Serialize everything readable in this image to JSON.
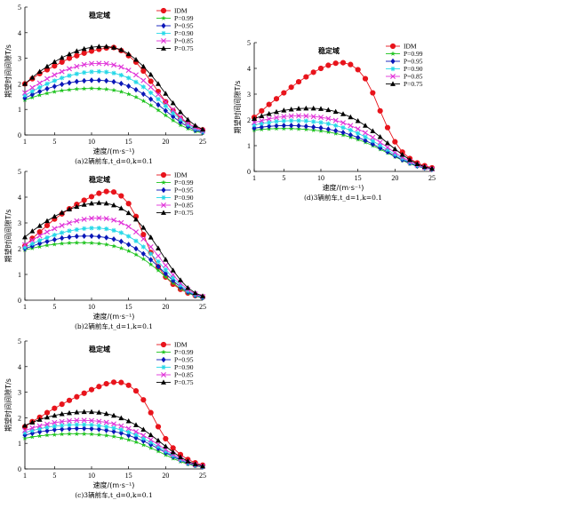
{
  "chart_data": [
    {
      "id": "a",
      "type": "line",
      "title": "",
      "caption": "(a)2辆前车,t_d=0,k=0.1",
      "annotation": "稳定域",
      "xlabel": "速度/(m·s⁻¹)",
      "ylabel": "期望时间间隙T/s",
      "xlim": [
        1,
        25
      ],
      "ylim": [
        0,
        5
      ],
      "xticks": [
        1,
        5,
        10,
        15,
        20,
        25
      ],
      "yticks": [
        0,
        1,
        2,
        3,
        4,
        5
      ],
      "x": [
        1,
        2,
        3,
        4,
        5,
        6,
        7,
        8,
        9,
        10,
        11,
        12,
        13,
        14,
        15,
        16,
        17,
        18,
        19,
        20,
        21,
        22,
        23,
        24,
        25
      ],
      "series": [
        {
          "name": "IDM",
          "color": "#e8141c",
          "marker": "circle",
          "values": [
            2.0,
            2.2,
            2.4,
            2.55,
            2.7,
            2.85,
            3.0,
            3.1,
            3.2,
            3.28,
            3.35,
            3.4,
            3.42,
            3.3,
            3.1,
            2.85,
            2.5,
            2.1,
            1.7,
            1.3,
            0.95,
            0.65,
            0.45,
            0.3,
            0.2
          ]
        },
        {
          "name": "P=0.99",
          "color": "#1ec31e",
          "marker": "star",
          "values": [
            1.37,
            1.47,
            1.56,
            1.63,
            1.69,
            1.74,
            1.77,
            1.8,
            1.81,
            1.82,
            1.81,
            1.79,
            1.75,
            1.69,
            1.6,
            1.48,
            1.33,
            1.16,
            0.97,
            0.77,
            0.57,
            0.39,
            0.25,
            0.14,
            0.08
          ]
        },
        {
          "name": "P=0.95",
          "color": "#0a17b8",
          "marker": "diamond",
          "values": [
            1.45,
            1.58,
            1.7,
            1.81,
            1.9,
            1.98,
            2.04,
            2.09,
            2.12,
            2.14,
            2.14,
            2.12,
            2.08,
            2.01,
            1.91,
            1.77,
            1.6,
            1.4,
            1.18,
            0.95,
            0.72,
            0.5,
            0.33,
            0.19,
            0.11
          ]
        },
        {
          "name": "P=0.90",
          "color": "#26d8e8",
          "marker": "asterisk",
          "values": [
            1.55,
            1.71,
            1.86,
            2.0,
            2.12,
            2.23,
            2.32,
            2.39,
            2.44,
            2.47,
            2.48,
            2.46,
            2.42,
            2.34,
            2.23,
            2.07,
            1.88,
            1.65,
            1.4,
            1.13,
            0.86,
            0.61,
            0.4,
            0.24,
            0.13
          ]
        },
        {
          "name": "P=0.85",
          "color": "#e030d8",
          "marker": "x",
          "values": [
            1.65,
            1.85,
            2.03,
            2.2,
            2.35,
            2.48,
            2.59,
            2.68,
            2.75,
            2.79,
            2.8,
            2.79,
            2.74,
            2.66,
            2.53,
            2.35,
            2.13,
            1.87,
            1.59,
            1.29,
            0.99,
            0.7,
            0.46,
            0.28,
            0.16
          ]
        },
        {
          "name": "P=0.75",
          "color": "#000000",
          "marker": "triangle",
          "values": [
            2.0,
            2.25,
            2.48,
            2.68,
            2.86,
            3.02,
            3.16,
            3.28,
            3.37,
            3.43,
            3.46,
            3.46,
            3.42,
            3.33,
            3.17,
            2.95,
            2.68,
            2.36,
            2.0,
            1.62,
            1.25,
            0.9,
            0.6,
            0.37,
            0.22
          ]
        }
      ]
    },
    {
      "id": "b",
      "type": "line",
      "title": "",
      "caption": "(b)2辆前车,t_d=1,k=0.1",
      "annotation": "稳定域",
      "xlabel": "速度/(m·s⁻¹)",
      "ylabel": "期望时间间隙T/s",
      "xlim": [
        1,
        25
      ],
      "ylim": [
        0,
        5
      ],
      "xticks": [
        1,
        5,
        10,
        15,
        20,
        25
      ],
      "yticks": [
        0,
        1,
        2,
        3,
        4,
        5
      ],
      "x": [
        1,
        2,
        3,
        4,
        5,
        6,
        7,
        8,
        9,
        10,
        11,
        12,
        13,
        14,
        15,
        16,
        17,
        18,
        19,
        20,
        21,
        22,
        23,
        24,
        25
      ],
      "series": [
        {
          "name": "IDM",
          "color": "#e8141c",
          "marker": "circle",
          "values": [
            2.1,
            2.4,
            2.65,
            2.9,
            3.15,
            3.35,
            3.55,
            3.72,
            3.88,
            4.02,
            4.15,
            4.22,
            4.2,
            4.05,
            3.75,
            3.25,
            2.55,
            1.85,
            1.3,
            0.9,
            0.62,
            0.42,
            0.28,
            0.18,
            0.12
          ]
        },
        {
          "name": "P=0.99",
          "color": "#1ec31e",
          "marker": "star",
          "values": [
            1.95,
            2.02,
            2.08,
            2.13,
            2.17,
            2.2,
            2.22,
            2.23,
            2.23,
            2.22,
            2.2,
            2.16,
            2.1,
            2.02,
            1.91,
            1.77,
            1.6,
            1.39,
            1.16,
            0.91,
            0.67,
            0.45,
            0.28,
            0.16,
            0.09
          ]
        },
        {
          "name": "P=0.95",
          "color": "#0a17b8",
          "marker": "diamond",
          "values": [
            2.0,
            2.1,
            2.2,
            2.28,
            2.35,
            2.41,
            2.45,
            2.48,
            2.49,
            2.49,
            2.47,
            2.43,
            2.37,
            2.28,
            2.16,
            2.0,
            1.8,
            1.57,
            1.31,
            1.03,
            0.76,
            0.51,
            0.32,
            0.18,
            0.1
          ]
        },
        {
          "name": "P=0.90",
          "color": "#26d8e8",
          "marker": "asterisk",
          "values": [
            2.05,
            2.19,
            2.32,
            2.43,
            2.53,
            2.62,
            2.69,
            2.74,
            2.78,
            2.8,
            2.8,
            2.77,
            2.71,
            2.62,
            2.48,
            2.3,
            2.07,
            1.8,
            1.5,
            1.18,
            0.87,
            0.58,
            0.36,
            0.21,
            0.12
          ]
        },
        {
          "name": "P=0.85",
          "color": "#e030d8",
          "marker": "x",
          "values": [
            2.15,
            2.33,
            2.5,
            2.65,
            2.78,
            2.9,
            3.0,
            3.08,
            3.14,
            3.18,
            3.19,
            3.17,
            3.11,
            3.01,
            2.86,
            2.65,
            2.38,
            2.07,
            1.72,
            1.35,
            0.99,
            0.66,
            0.41,
            0.24,
            0.14
          ]
        },
        {
          "name": "P=0.75",
          "color": "#000000",
          "marker": "triangle",
          "values": [
            2.45,
            2.68,
            2.89,
            3.08,
            3.25,
            3.4,
            3.53,
            3.63,
            3.71,
            3.76,
            3.78,
            3.76,
            3.69,
            3.57,
            3.39,
            3.14,
            2.82,
            2.44,
            2.02,
            1.58,
            1.16,
            0.78,
            0.48,
            0.28,
            0.16
          ]
        }
      ]
    },
    {
      "id": "c",
      "type": "line",
      "title": "",
      "caption": "(c)3辆前车,t_d=0,k=0.1",
      "annotation": "稳定域",
      "xlabel": "速度/(m·s⁻¹)",
      "ylabel": "期望时间间隙T/s",
      "xlim": [
        1,
        25
      ],
      "ylim": [
        0,
        5
      ],
      "xticks": [
        1,
        5,
        10,
        15,
        20,
        25
      ],
      "yticks": [
        0,
        1,
        2,
        3,
        4,
        5
      ],
      "x": [
        1,
        2,
        3,
        4,
        5,
        6,
        7,
        8,
        9,
        10,
        11,
        12,
        13,
        14,
        15,
        16,
        17,
        18,
        19,
        20,
        21,
        22,
        23,
        24,
        25
      ],
      "series": [
        {
          "name": "IDM",
          "color": "#e8141c",
          "marker": "circle",
          "values": [
            1.65,
            1.85,
            2.02,
            2.2,
            2.37,
            2.53,
            2.68,
            2.82,
            2.96,
            3.1,
            3.22,
            3.33,
            3.39,
            3.38,
            3.27,
            3.05,
            2.7,
            2.2,
            1.65,
            1.18,
            0.82,
            0.56,
            0.37,
            0.24,
            0.15
          ]
        },
        {
          "name": "P=0.99",
          "color": "#1ec31e",
          "marker": "star",
          "values": [
            1.2,
            1.25,
            1.29,
            1.32,
            1.34,
            1.36,
            1.37,
            1.37,
            1.37,
            1.36,
            1.34,
            1.31,
            1.27,
            1.21,
            1.14,
            1.05,
            0.94,
            0.82,
            0.69,
            0.55,
            0.41,
            0.29,
            0.19,
            0.12,
            0.07
          ]
        },
        {
          "name": "P=0.95",
          "color": "#0a17b8",
          "marker": "diamond",
          "values": [
            1.32,
            1.39,
            1.45,
            1.49,
            1.53,
            1.55,
            1.57,
            1.58,
            1.58,
            1.57,
            1.55,
            1.51,
            1.46,
            1.4,
            1.31,
            1.21,
            1.09,
            0.95,
            0.8,
            0.64,
            0.48,
            0.34,
            0.22,
            0.14,
            0.08
          ]
        },
        {
          "name": "P=0.90",
          "color": "#26d8e8",
          "marker": "asterisk",
          "values": [
            1.42,
            1.5,
            1.57,
            1.63,
            1.67,
            1.7,
            1.72,
            1.73,
            1.73,
            1.72,
            1.69,
            1.65,
            1.6,
            1.53,
            1.44,
            1.33,
            1.19,
            1.04,
            0.87,
            0.69,
            0.52,
            0.36,
            0.24,
            0.15,
            0.09
          ]
        },
        {
          "name": "P=0.85",
          "color": "#e030d8",
          "marker": "x",
          "values": [
            1.5,
            1.6,
            1.68,
            1.75,
            1.81,
            1.85,
            1.88,
            1.9,
            1.9,
            1.89,
            1.86,
            1.82,
            1.76,
            1.68,
            1.58,
            1.46,
            1.31,
            1.14,
            0.95,
            0.76,
            0.57,
            0.4,
            0.26,
            0.16,
            0.1
          ]
        },
        {
          "name": "P=0.75",
          "color": "#000000",
          "marker": "triangle",
          "values": [
            1.7,
            1.82,
            1.93,
            2.02,
            2.09,
            2.15,
            2.19,
            2.22,
            2.23,
            2.23,
            2.21,
            2.16,
            2.09,
            1.99,
            1.87,
            1.72,
            1.54,
            1.33,
            1.11,
            0.88,
            0.66,
            0.46,
            0.3,
            0.19,
            0.11
          ]
        }
      ]
    },
    {
      "id": "d",
      "type": "line",
      "title": "",
      "caption": "(d)3辆前车,t_d=1,k=0.1",
      "annotation": "稳定域",
      "xlabel": "速度/(m·s⁻¹)",
      "ylabel": "期望时间间隙T/s",
      "xlim": [
        1,
        25
      ],
      "ylim": [
        0,
        5
      ],
      "xticks": [
        1,
        5,
        10,
        15,
        20,
        25
      ],
      "yticks": [
        0,
        1,
        2,
        3,
        4,
        5
      ],
      "x": [
        1,
        2,
        3,
        4,
        5,
        6,
        7,
        8,
        9,
        10,
        11,
        12,
        13,
        14,
        15,
        16,
        17,
        18,
        19,
        20,
        21,
        22,
        23,
        24,
        25
      ],
      "series": [
        {
          "name": "IDM",
          "color": "#e8141c",
          "marker": "circle",
          "values": [
            2.1,
            2.35,
            2.6,
            2.82,
            3.05,
            3.27,
            3.48,
            3.67,
            3.85,
            4.0,
            4.12,
            4.2,
            4.22,
            4.15,
            3.95,
            3.6,
            3.05,
            2.35,
            1.7,
            1.15,
            0.75,
            0.5,
            0.33,
            0.22,
            0.14
          ]
        },
        {
          "name": "P=0.99",
          "color": "#1ec31e",
          "marker": "star",
          "values": [
            1.6,
            1.63,
            1.65,
            1.66,
            1.66,
            1.66,
            1.65,
            1.63,
            1.6,
            1.57,
            1.53,
            1.47,
            1.41,
            1.33,
            1.24,
            1.13,
            1.0,
            0.86,
            0.72,
            0.57,
            0.43,
            0.3,
            0.2,
            0.13,
            0.08
          ]
        },
        {
          "name": "P=0.95",
          "color": "#0a17b8",
          "marker": "diamond",
          "values": [
            1.68,
            1.72,
            1.75,
            1.77,
            1.78,
            1.78,
            1.77,
            1.75,
            1.72,
            1.69,
            1.64,
            1.58,
            1.51,
            1.42,
            1.32,
            1.2,
            1.06,
            0.91,
            0.76,
            0.6,
            0.45,
            0.32,
            0.21,
            0.13,
            0.08
          ]
        },
        {
          "name": "P=0.90",
          "color": "#26d8e8",
          "marker": "asterisk",
          "values": [
            1.8,
            1.86,
            1.9,
            1.94,
            1.96,
            1.97,
            1.97,
            1.96,
            1.93,
            1.9,
            1.85,
            1.78,
            1.7,
            1.6,
            1.48,
            1.34,
            1.18,
            1.01,
            0.84,
            0.66,
            0.5,
            0.35,
            0.23,
            0.14,
            0.09
          ]
        },
        {
          "name": "P=0.85",
          "color": "#e030d8",
          "marker": "x",
          "values": [
            1.9,
            1.97,
            2.04,
            2.09,
            2.13,
            2.15,
            2.16,
            2.15,
            2.13,
            2.1,
            2.05,
            1.98,
            1.89,
            1.78,
            1.65,
            1.5,
            1.32,
            1.13,
            0.93,
            0.73,
            0.55,
            0.38,
            0.25,
            0.15,
            0.09
          ]
        },
        {
          "name": "P=0.75",
          "color": "#000000",
          "marker": "triangle",
          "values": [
            2.05,
            2.15,
            2.24,
            2.31,
            2.37,
            2.41,
            2.44,
            2.45,
            2.45,
            2.43,
            2.39,
            2.32,
            2.23,
            2.11,
            1.96,
            1.78,
            1.57,
            1.34,
            1.1,
            0.87,
            0.65,
            0.45,
            0.29,
            0.18,
            0.11
          ]
        }
      ]
    }
  ]
}
